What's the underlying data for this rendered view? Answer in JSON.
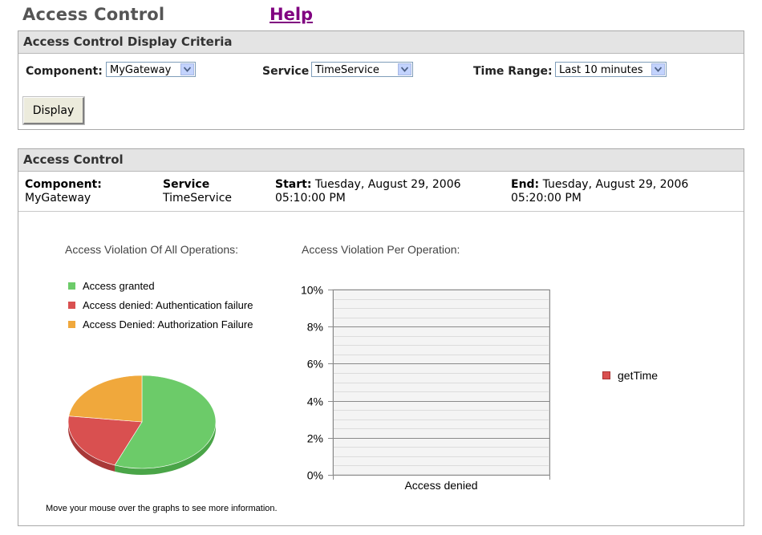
{
  "header": {
    "title": "Access Control",
    "help_label": "Help"
  },
  "criteria": {
    "title": "Access Control Display Criteria",
    "component_label": "Component:",
    "component_value": "MyGateway",
    "service_label": "Service",
    "service_value": "TimeService",
    "time_range_label": "Time Range:",
    "time_range_value": "Last 10 minutes",
    "display_button": "Display"
  },
  "access": {
    "title": "Access Control",
    "component_label": "Component:",
    "component_value": "MyGateway",
    "service_label": "Service",
    "service_value": "TimeService",
    "start_label": "Start:",
    "start_line1": "Tuesday, August 29, 2006",
    "start_line2": "05:10:00 PM",
    "end_label": "End:",
    "end_line1": "Tuesday, August 29, 2006",
    "end_line2": "05:20:00 PM",
    "footnote": "Move your mouse over the graphs to see more information."
  },
  "colors": {
    "granted": "#6ccb69",
    "auth_failure": "#d95050",
    "authz_failure": "#f0a83c",
    "link": "#800080"
  },
  "chart_data": [
    {
      "type": "pie",
      "title": "Access Violation Of All Operations:",
      "labels": [
        "Access granted",
        "Access denied: Authentication failure",
        "Access Denied: Authorization Failure"
      ],
      "values": [
        56,
        21,
        23
      ],
      "legend": "top-left"
    },
    {
      "type": "bar",
      "title": "Access Violation Per Operation:",
      "categories": [
        "Access denied"
      ],
      "series": [
        {
          "name": "getTime",
          "values": [
            0
          ]
        }
      ],
      "yticks": [
        "0%",
        "2%",
        "4%",
        "6%",
        "8%",
        "10%"
      ],
      "ylim": [
        0,
        10
      ],
      "grid": true,
      "legend": "right"
    }
  ]
}
